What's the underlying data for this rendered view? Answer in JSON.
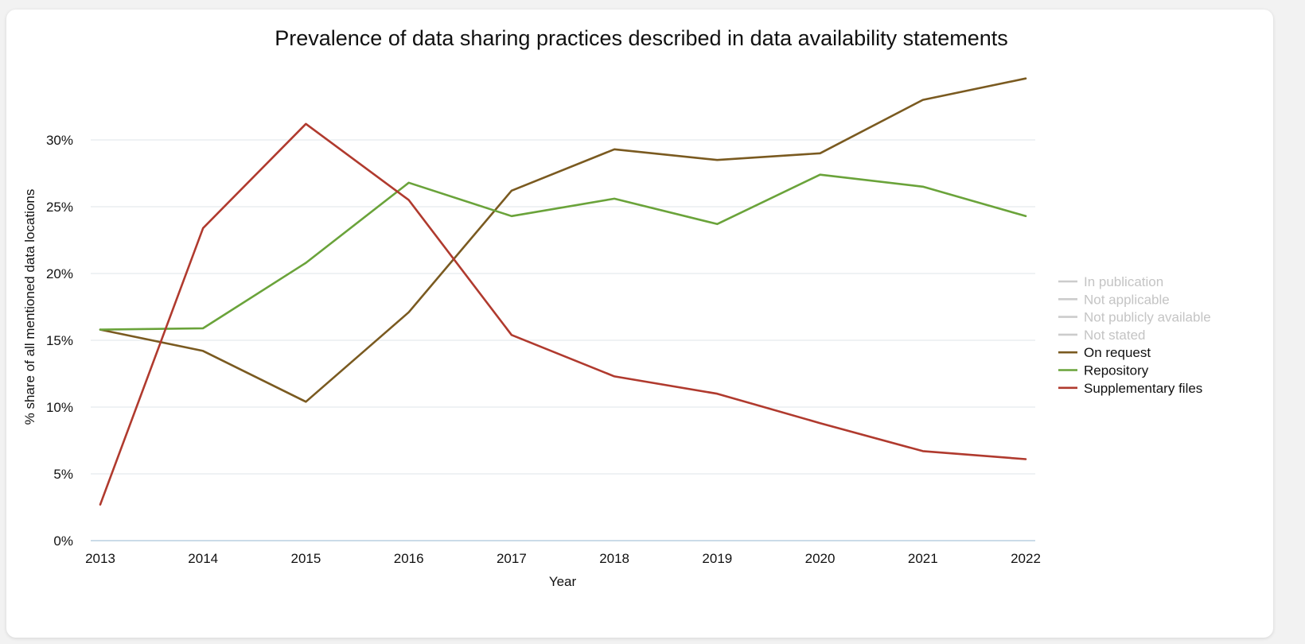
{
  "chart_data": {
    "type": "line",
    "title": "Prevalence of data sharing practices described in data availability statements",
    "xlabel": "Year",
    "ylabel": "% share of all mentioned data locations",
    "x": [
      2013,
      2014,
      2015,
      2016,
      2017,
      2018,
      2019,
      2020,
      2021,
      2022
    ],
    "ylim": [
      0,
      35
    ],
    "yticks": [
      0,
      5,
      10,
      15,
      20,
      25,
      30
    ],
    "ytick_labels": [
      "0%",
      "5%",
      "10%",
      "15%",
      "20%",
      "25%",
      "30%"
    ],
    "grid": true,
    "legend_position": "right",
    "legend": [
      {
        "name": "In publication",
        "color": "#cccccc",
        "muted": true
      },
      {
        "name": "Not applicable",
        "color": "#cccccc",
        "muted": true
      },
      {
        "name": "Not publicly available",
        "color": "#cccccc",
        "muted": true
      },
      {
        "name": "Not stated",
        "color": "#cccccc",
        "muted": true
      },
      {
        "name": "On request",
        "color": "#7a5a20",
        "muted": false
      },
      {
        "name": "Repository",
        "color": "#6aa33a",
        "muted": false
      },
      {
        "name": "Supplementary files",
        "color": "#b03a2e",
        "muted": false
      }
    ],
    "series": [
      {
        "name": "On request",
        "color": "#7a5a20",
        "values": [
          15.8,
          14.2,
          10.4,
          17.1,
          26.2,
          29.3,
          28.5,
          29.0,
          33.0,
          34.6
        ]
      },
      {
        "name": "Repository",
        "color": "#6aa33a",
        "values": [
          15.8,
          15.9,
          20.8,
          26.8,
          24.3,
          25.6,
          23.7,
          27.4,
          26.5,
          24.3
        ]
      },
      {
        "name": "Supplementary files",
        "color": "#b03a2e",
        "values": [
          2.7,
          23.4,
          31.2,
          25.5,
          15.4,
          12.3,
          11.0,
          8.8,
          6.7,
          6.1
        ]
      }
    ]
  }
}
